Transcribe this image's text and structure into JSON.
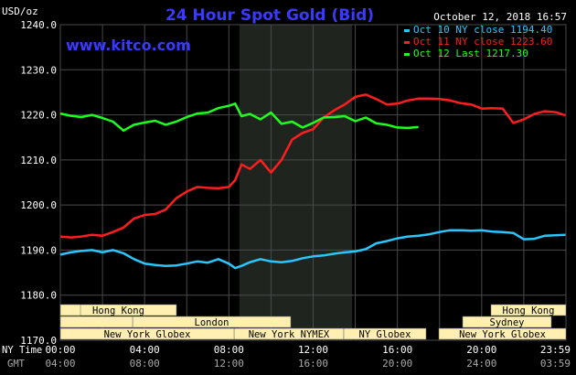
{
  "header": {
    "title": "24 Hour Spot Gold (Bid)",
    "unit": "USD/oz",
    "timestamp": "October 12, 2018 16:57",
    "site": "www.kitco.com"
  },
  "colors": {
    "background": "#000000",
    "plot_bg": "#000000",
    "ny_highlight": "#1f241f",
    "grid": "#4a4a4a",
    "title": "#3a3aff",
    "site": "#3a3aff",
    "axis_text": "#ffffff",
    "gmt_text": "#aaaaaa",
    "session_fill": "#ffefb0",
    "session_text": "#000000",
    "blue": "#29c6ff",
    "red": "#ff1e1e",
    "green": "#1fff1f"
  },
  "bottom_labels": {
    "ny_time": "NY Time",
    "gmt": "GMT"
  },
  "sessions": [
    {
      "label": "Hong Kong",
      "start": 0,
      "end": 8.5
    },
    {
      "label": "London",
      "start": 2.7,
      "end": 8.5
    },
    {
      "label": "New York NYMEX",
      "start": 8.5,
      "end": 13.85
    },
    {
      "label": "Hong Kong",
      "start": 17.0,
      "end": 24.0
    },
    {
      "label": "Sydney",
      "start": 17.0,
      "end": 24.0
    },
    {
      "label": "New York Globex",
      "start": 0,
      "end": 8.5
    },
    {
      "label": "NY Globex",
      "start": 13.85,
      "end": 18.4
    },
    {
      "label": "New York Globex",
      "start": 18.4,
      "end": 24.0
    }
  ],
  "chart_data": {
    "type": "line",
    "title": "24 Hour Spot Gold (Bid)",
    "ylabel": "USD/oz",
    "ylim": [
      1170,
      1240
    ],
    "y_ticks": [
      "1240.0",
      "1230.0",
      "1220.0",
      "1210.0",
      "1200.0",
      "1190.0",
      "1180.0",
      "1170.0"
    ],
    "xlim": [
      0,
      24
    ],
    "x_ticks_ny": [
      "00:00",
      "04:00",
      "08:00",
      "12:00",
      "16:00",
      "20:00",
      "23:59"
    ],
    "x_ticks_gmt": [
      "04:00",
      "08:00",
      "12:00",
      "16:00",
      "20:00",
      "24:00",
      "03:59"
    ],
    "grid": true,
    "legend_position": "top-right",
    "series": [
      {
        "name": "Oct 10 NY close 1194.40",
        "color_key": "blue",
        "x": [
          0,
          0.5,
          1,
          1.5,
          2,
          2.5,
          3,
          3.5,
          4,
          4.5,
          5,
          5.5,
          6,
          6.5,
          7,
          7.5,
          8,
          8.3,
          8.6,
          9,
          9.5,
          10,
          10.5,
          11,
          11.5,
          12,
          12.5,
          13,
          13.5,
          14,
          14.5,
          15,
          15.5,
          16,
          16.5,
          17,
          17.5,
          18,
          18.5,
          19,
          19.5,
          20,
          20.5,
          21,
          21.5,
          22,
          22.5,
          23,
          23.5,
          23.98
        ],
        "values": [
          1189,
          1189.5,
          1189.8,
          1190,
          1189.5,
          1190,
          1189.3,
          1188,
          1187,
          1186.7,
          1186.5,
          1186.6,
          1187,
          1187.5,
          1187.2,
          1188,
          1187,
          1186,
          1186.5,
          1187.3,
          1188,
          1187.5,
          1187.3,
          1187.6,
          1188.2,
          1188.6,
          1188.8,
          1189.2,
          1189.5,
          1189.7,
          1190.2,
          1191.5,
          1192,
          1192.6,
          1193,
          1193.2,
          1193.5,
          1194,
          1194.4,
          1194.4,
          1194.3,
          1194.4,
          1194.1,
          1194,
          1193.8,
          1192.4,
          1192.5,
          1193.2,
          1193.3,
          1193.4
        ]
      },
      {
        "name": "Oct 11 NY close 1223.60",
        "color_key": "red",
        "x": [
          0,
          0.5,
          1,
          1.5,
          2,
          2.5,
          3,
          3.5,
          4,
          4.5,
          5,
          5.5,
          6,
          6.5,
          7,
          7.5,
          8,
          8.3,
          8.6,
          9,
          9.5,
          10,
          10.5,
          11,
          11.5,
          12,
          12.5,
          13,
          13.5,
          14,
          14.5,
          15,
          15.5,
          16,
          16.5,
          17,
          17.5,
          18,
          18.5,
          19,
          19.5,
          20,
          20.5,
          21,
          21.5,
          22,
          22.5,
          23,
          23.5,
          23.98
        ],
        "values": [
          1193,
          1192.8,
          1193,
          1193.4,
          1193.2,
          1194,
          1195,
          1197,
          1197.8,
          1198,
          1199,
          1201.5,
          1203,
          1204,
          1203.8,
          1203.7,
          1204,
          1205.5,
          1209,
          1208,
          1210,
          1207.2,
          1210,
          1214.5,
          1216,
          1216.8,
          1219.4,
          1221,
          1222.3,
          1224,
          1224.5,
          1223.5,
          1222.3,
          1222.5,
          1223.2,
          1223.6,
          1223.6,
          1223.5,
          1223.2,
          1222.6,
          1222.3,
          1221.4,
          1221.5,
          1221.4,
          1218.2,
          1219,
          1220.2,
          1220.8,
          1220.6,
          1219.9
        ]
      },
      {
        "name": "Oct 12 Last 1217.30",
        "color_key": "green",
        "x": [
          0,
          0.5,
          1,
          1.5,
          2,
          2.5,
          3,
          3.5,
          4,
          4.5,
          5,
          5.5,
          6,
          6.5,
          7,
          7.5,
          8,
          8.3,
          8.6,
          9,
          9.5,
          10,
          10.5,
          11,
          11.5,
          12,
          12.5,
          13,
          13.5,
          14,
          14.5,
          15,
          15.5,
          16,
          16.5,
          17
        ],
        "values": [
          1220.3,
          1219.8,
          1219.5,
          1220,
          1219.3,
          1218.5,
          1216.5,
          1217.8,
          1218.3,
          1218.7,
          1217.8,
          1218.5,
          1219.5,
          1220.3,
          1220.5,
          1221.5,
          1222,
          1222.5,
          1219.7,
          1220.2,
          1219,
          1220.5,
          1218,
          1218.5,
          1217.2,
          1218.2,
          1219.4,
          1219.5,
          1219.7,
          1218.6,
          1219.4,
          1218.1,
          1217.8,
          1217.2,
          1217.1,
          1217.3
        ]
      }
    ]
  }
}
